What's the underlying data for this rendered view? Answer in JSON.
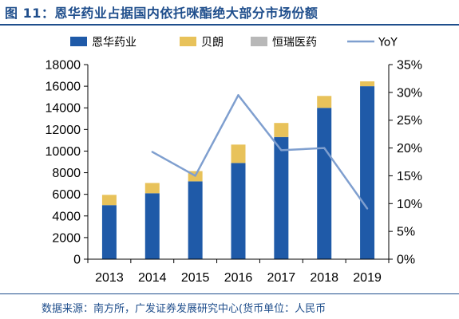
{
  "figure": {
    "title": "图 11：恩华药业占据国内依托咪酯绝大部分市场份额",
    "source": "数据来源：南方所，广发证券发展研究中心(货币单位：人民币"
  },
  "chart_data": {
    "type": "bar",
    "stacked": true,
    "categories": [
      "2013",
      "2014",
      "2015",
      "2016",
      "2017",
      "2018",
      "2019"
    ],
    "series": [
      {
        "name": "恩华药业",
        "color": "#1f5aa8",
        "values": [
          5000,
          6100,
          7200,
          8900,
          11300,
          14000,
          16000
        ]
      },
      {
        "name": "贝朗",
        "color": "#e8c25a",
        "values": [
          950,
          950,
          950,
          1700,
          1300,
          1100,
          450
        ]
      },
      {
        "name": "恒瑞医药",
        "color": "#b8b8b8",
        "values": [
          0,
          0,
          0,
          0,
          0,
          0,
          0
        ]
      }
    ],
    "line_series": {
      "name": "YoY",
      "color": "#7f9fcf",
      "axis": "right",
      "values": [
        null,
        0.193,
        0.15,
        0.295,
        0.196,
        0.2,
        0.091
      ]
    },
    "y_left": {
      "min": 0,
      "max": 18000,
      "step": 2000,
      "tick_labels": [
        "0",
        "2000",
        "4000",
        "6000",
        "8000",
        "10000",
        "12000",
        "14000",
        "16000",
        "18000"
      ]
    },
    "y_right": {
      "min": 0,
      "max": 0.35,
      "step": 0.05,
      "tick_labels": [
        "0%",
        "5%",
        "10%",
        "15%",
        "20%",
        "25%",
        "30%",
        "35%"
      ]
    },
    "legend": {
      "position": "top",
      "entries": [
        "恩华药业",
        "贝朗",
        "恒瑞医药",
        "YoY"
      ]
    },
    "grid": false
  }
}
